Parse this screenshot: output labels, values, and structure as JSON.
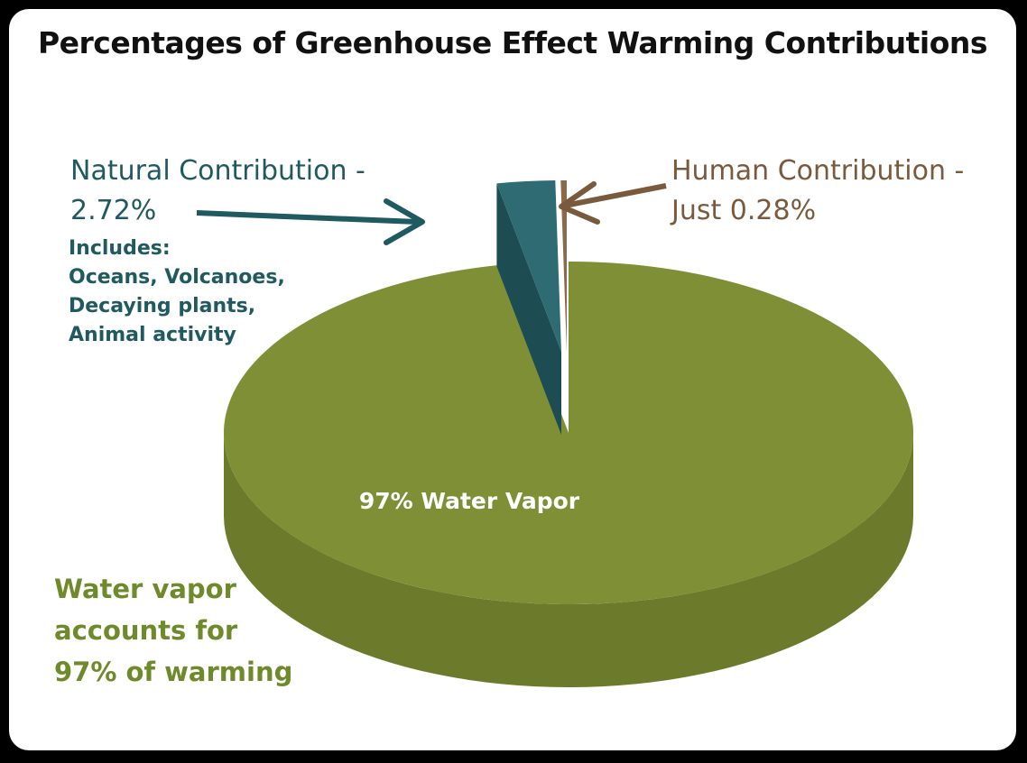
{
  "title": "Percentages of Greenhouse Effect Warming Contributions",
  "chart_data": {
    "type": "pie",
    "title": "Percentages of Greenhouse Effect Warming Contributions",
    "slices": [
      {
        "label": "97% Water Vapor",
        "value": 97,
        "color": "#7e8f35",
        "side_color": "#6c7b2b"
      },
      {
        "label": "Natural Contribution - 2.72%",
        "value": 2.72,
        "color": "#2e6b72",
        "side_color": "#1d4c53"
      },
      {
        "label": "Human Contribution - Just 0.28%",
        "value": 0.28,
        "color": "#8a6a4b",
        "side_color": "#6e523a"
      }
    ]
  },
  "annotations": {
    "natural": {
      "text": "Natural Contribution -\n2.72%",
      "detail": "Includes:\nOceans, Volcanoes,\nDecaying plants,\nAnimal activity",
      "color": "#1f5a60"
    },
    "human": {
      "text": "Human Contribution -\nJust 0.28%",
      "color": "#7a5a3d"
    },
    "water": {
      "slice_label": "97% Water Vapor",
      "note": "Water vapor\naccounts for\n97% of warming",
      "color": "#6f8a2a"
    }
  }
}
